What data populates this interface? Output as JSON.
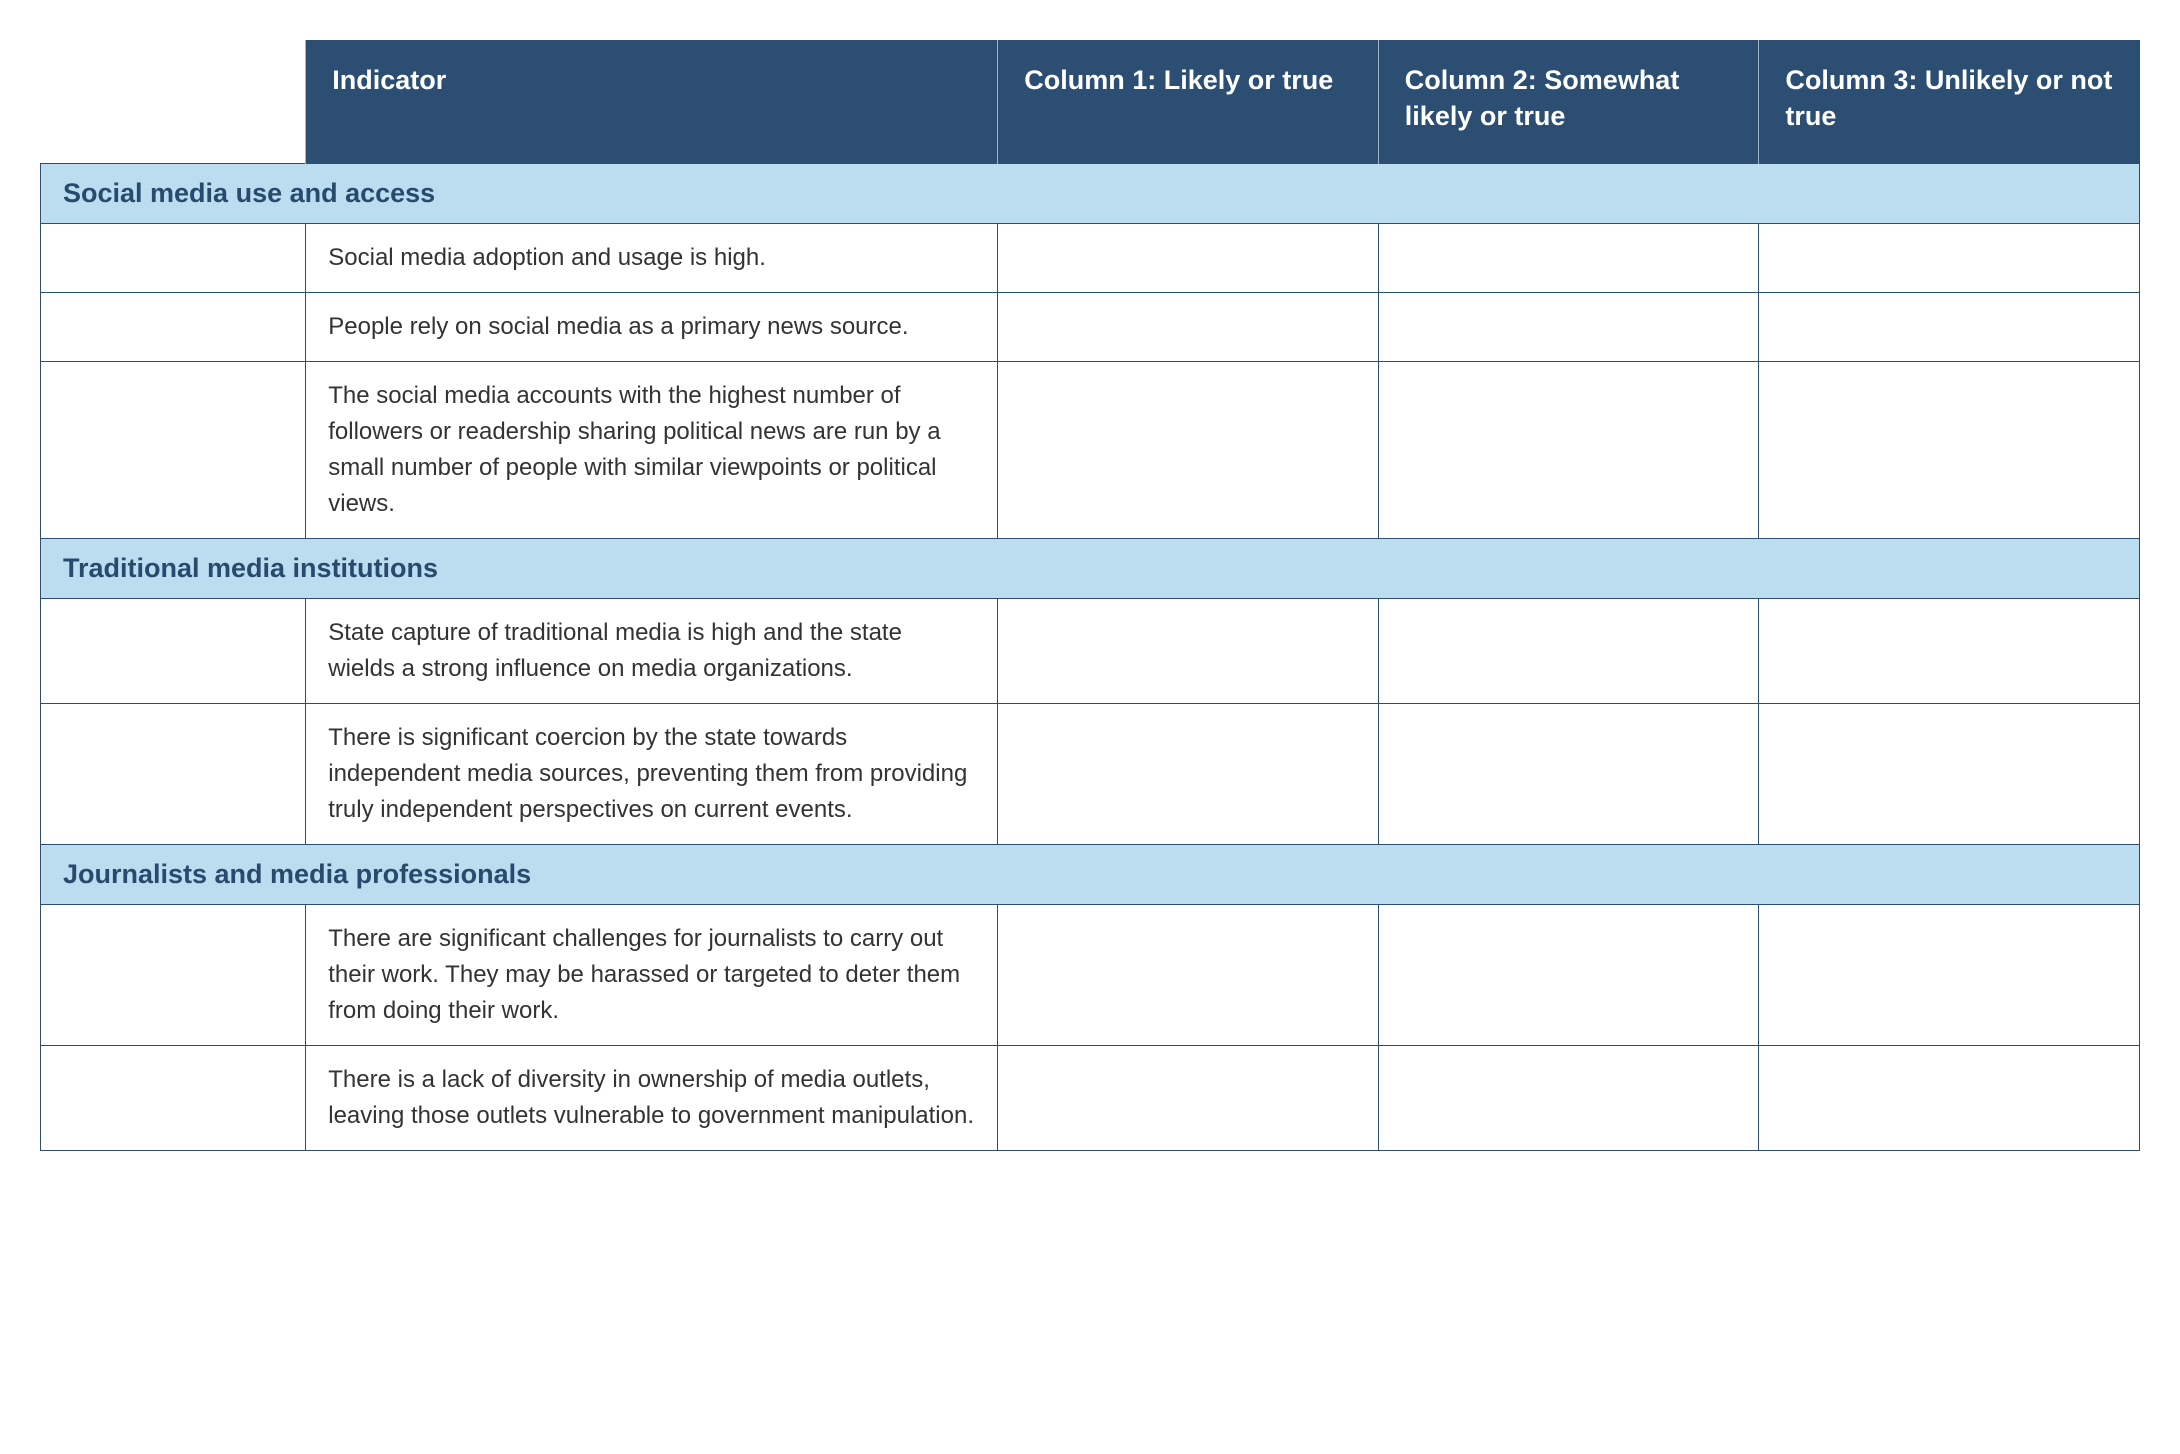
{
  "colors": {
    "header_bg": "#2b4e72",
    "header_text": "#ffffff",
    "section_bg": "#bcdcef",
    "section_text": "#274a6d",
    "border": "#2b4e72",
    "header_divider": "#9db4c7",
    "body_text": "#333333",
    "page_bg": "#ffffff"
  },
  "typography": {
    "header_fontsize_pt": 20,
    "section_fontsize_pt": 20,
    "body_fontsize_pt": 18,
    "header_weight": 700,
    "section_weight": 700
  },
  "layout": {
    "column_widths_pct": [
      11.5,
      30,
      16.5,
      16.5,
      16.5
    ]
  },
  "table": {
    "headers": {
      "indicator": "Indicator",
      "col1": "Column 1:\nLikely or true",
      "col2": "Column 2:\nSomewhat likely or true",
      "col3": "Column 3:\nUnlikely or not true"
    },
    "sections": [
      {
        "title": "Social media use and access",
        "rows": [
          {
            "indicator": "Social media adoption and usage is high.",
            "col1": "",
            "col2": "",
            "col3": ""
          },
          {
            "indicator": "People rely on social media as a primary news source.",
            "col1": "",
            "col2": "",
            "col3": ""
          },
          {
            "indicator": "The social media accounts with the highest number of followers or readership sharing political news are run by a small number of people with similar viewpoints or political views.",
            "col1": "",
            "col2": "",
            "col3": ""
          }
        ]
      },
      {
        "title": "Traditional media institutions",
        "rows": [
          {
            "indicator": "State capture of traditional media is high and the state wields a strong influence on media organizations.",
            "col1": "",
            "col2": "",
            "col3": ""
          },
          {
            "indicator": "There is significant coercion by the state towards independent media sources, preventing them from providing truly independent perspectives on current events.",
            "col1": "",
            "col2": "",
            "col3": ""
          }
        ]
      },
      {
        "title": "Journalists and media professionals",
        "rows": [
          {
            "indicator": "There are significant challenges for journalists to carry out their work. They may be harassed or targeted to deter them from doing their work.",
            "col1": "",
            "col2": "",
            "col3": ""
          },
          {
            "indicator": "There is a lack of diversity in ownership of media outlets, leaving those outlets vulnerable to government manipulation.",
            "col1": "",
            "col2": "",
            "col3": ""
          }
        ]
      }
    ]
  }
}
